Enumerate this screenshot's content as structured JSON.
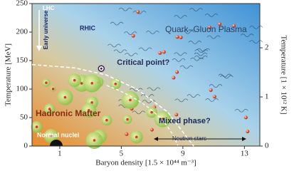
{
  "chart_data": {
    "type": "phase",
    "x_label": "Baryon density [1.5 × 10⁴⁴ m⁻³]",
    "y_label": "Temperature [MeV]",
    "y2_label": "Temperature [1 × 10¹² K]",
    "xlim": [
      -0.8,
      14
    ],
    "xticks": [
      1,
      5,
      9,
      13
    ],
    "ylim": [
      0,
      250
    ],
    "yticks": [
      0,
      50,
      100,
      150,
      200,
      250
    ],
    "y2lim": [
      0,
      2.9
    ],
    "y2ticks": [
      0,
      1,
      2
    ],
    "series": [
      {
        "x": [
          -0.8,
          2,
          4,
          6,
          8,
          9.7
        ],
        "values": [
          143,
          137,
          125,
          100,
          60,
          0
        ],
        "color": "#ffffff"
      }
    ],
    "critical_point": {
      "label": "Critical point?",
      "x": 3.7,
      "y": 136
    },
    "annotations": [
      "LHC",
      "RHIC",
      "Early universe",
      "Quark–Gluon Plasma",
      "Hadronic Matter",
      "Mixed phase?",
      "Neutron stars",
      "Normal nuclei"
    ]
  }
}
